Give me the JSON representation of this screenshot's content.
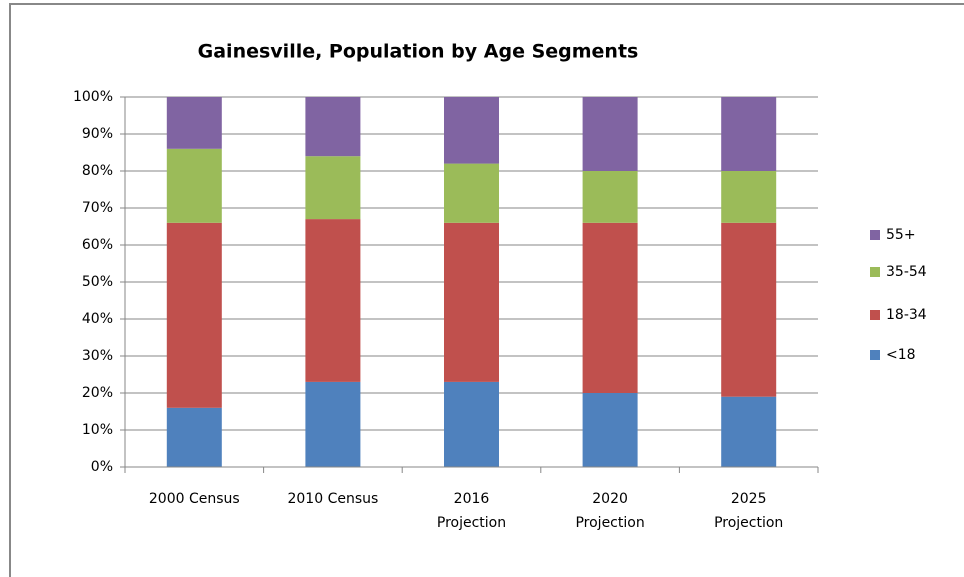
{
  "chart_data": {
    "type": "stacked_bar",
    "title": "Gainesville, Population by Age Segments",
    "categories": [
      "2000 Census",
      "2010 Census",
      "2016\nProjection",
      "2020\nProjection",
      "2025\nProjection"
    ],
    "series": [
      {
        "name": "<18",
        "color": "#4f81bd",
        "values": [
          16,
          23,
          23,
          20,
          19
        ]
      },
      {
        "name": "18-34",
        "color": "#c0504d",
        "values": [
          50,
          44,
          43,
          46,
          47
        ]
      },
      {
        "name": "35-54",
        "color": "#9bbb59",
        "values": [
          20,
          17,
          16,
          14,
          14
        ]
      },
      {
        "name": "55+",
        "color": "#8064a2",
        "values": [
          14,
          16,
          18,
          20,
          20
        ]
      }
    ],
    "ylim": [
      0,
      100
    ],
    "yticks": [
      {
        "value": 0,
        "label": "0%"
      },
      {
        "value": 10,
        "label": "10%"
      },
      {
        "value": 20,
        "label": "20%"
      },
      {
        "value": 30,
        "label": "30%"
      },
      {
        "value": 40,
        "label": "40%"
      },
      {
        "value": 50,
        "label": "50%"
      },
      {
        "value": 60,
        "label": "60%"
      },
      {
        "value": 70,
        "label": "70%"
      },
      {
        "value": 80,
        "label": "80%"
      },
      {
        "value": 90,
        "label": "90%"
      },
      {
        "value": 100,
        "label": "100%"
      }
    ],
    "grid": true,
    "legend": "right"
  }
}
